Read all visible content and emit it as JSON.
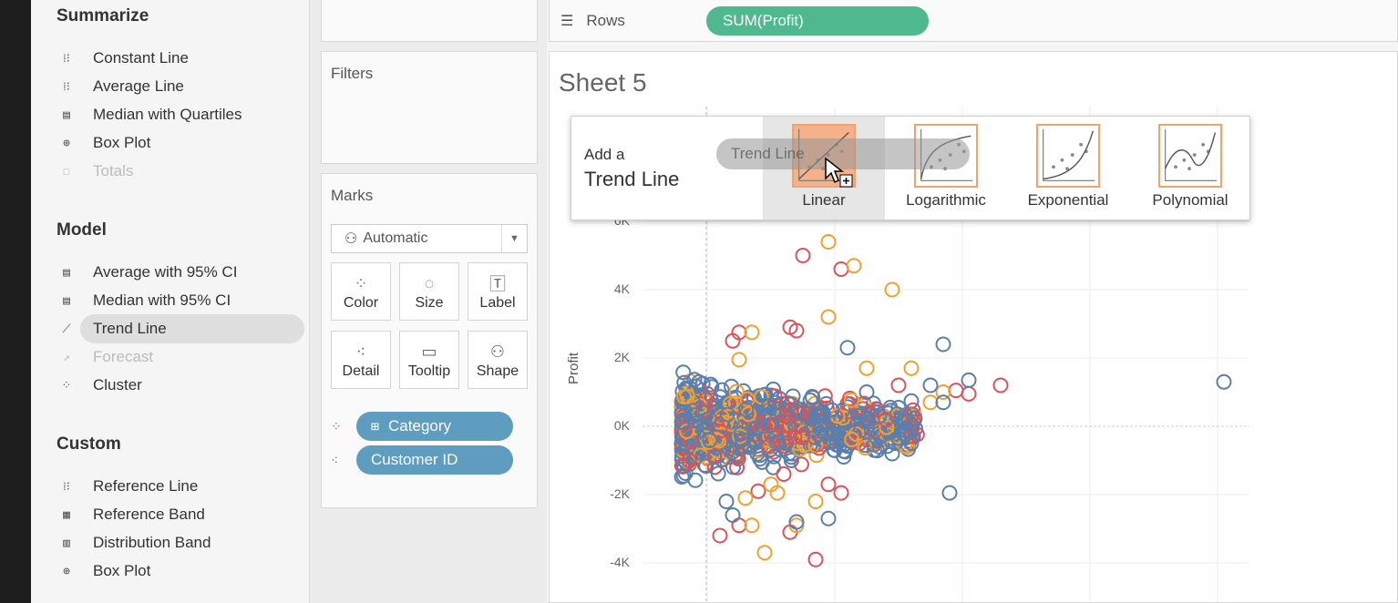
{
  "analytics": {
    "summarize": {
      "title": "Summarize",
      "items": [
        {
          "label": "Constant Line",
          "icon": "reference-line-icon",
          "glyph": "⁞⁝",
          "disabled": false
        },
        {
          "label": "Average Line",
          "icon": "reference-line-icon",
          "glyph": "⁞⁝",
          "disabled": false
        },
        {
          "label": "Median with Quartiles",
          "icon": "distribution-band-icon",
          "glyph": "▤",
          "disabled": false
        },
        {
          "label": "Box Plot",
          "icon": "box-plot-icon",
          "glyph": "⊕",
          "disabled": false
        },
        {
          "label": "Totals",
          "icon": "totals-icon",
          "glyph": "☐",
          "disabled": true
        }
      ]
    },
    "model": {
      "title": "Model",
      "items": [
        {
          "label": "Average with 95% CI",
          "icon": "confidence-band-icon",
          "glyph": "▤",
          "disabled": false
        },
        {
          "label": "Median with 95% CI",
          "icon": "confidence-band-icon",
          "glyph": "▤",
          "disabled": false
        },
        {
          "label": "Trend Line",
          "icon": "trend-line-icon",
          "glyph": "⟋",
          "disabled": false,
          "selected": true
        },
        {
          "label": "Forecast",
          "icon": "forecast-icon",
          "glyph": "↗",
          "disabled": true
        },
        {
          "label": "Cluster",
          "icon": "cluster-icon",
          "glyph": "⁘",
          "disabled": false
        }
      ]
    },
    "custom": {
      "title": "Custom",
      "items": [
        {
          "label": "Reference Line",
          "icon": "reference-line-icon",
          "glyph": "⁞⁝",
          "disabled": false
        },
        {
          "label": "Reference Band",
          "icon": "reference-band-icon",
          "glyph": "▦",
          "disabled": false
        },
        {
          "label": "Distribution Band",
          "icon": "distribution-band-icon",
          "glyph": "▥",
          "disabled": false
        },
        {
          "label": "Box Plot",
          "icon": "box-plot-icon",
          "glyph": "⊕",
          "disabled": false
        }
      ]
    }
  },
  "filters": {
    "title": "Filters"
  },
  "marks": {
    "title": "Marks",
    "mark_type": "Automatic",
    "mark_type_icon": "⚇",
    "buttons": [
      {
        "label": "Color",
        "icon": "color-icon",
        "glyph": "⁘"
      },
      {
        "label": "Size",
        "icon": "size-icon",
        "glyph": "◌"
      },
      {
        "label": "Label",
        "icon": "label-icon",
        "glyph": "🅃"
      },
      {
        "label": "Detail",
        "icon": "detail-icon",
        "glyph": "⁖"
      },
      {
        "label": "Tooltip",
        "icon": "tooltip-icon",
        "glyph": "▭"
      },
      {
        "label": "Shape",
        "icon": "shape-icon",
        "glyph": "⚇"
      }
    ],
    "fields": [
      {
        "label": "Category",
        "prefix": "⊞",
        "icon": "color-icon",
        "glyph": "⁘"
      },
      {
        "label": "Customer ID",
        "prefix": "",
        "icon": "detail-icon",
        "glyph": "⁖"
      }
    ]
  },
  "rows": {
    "label": "Rows",
    "pill": "SUM(Profit)"
  },
  "sheet": {
    "title": "Sheet 5"
  },
  "trend_popup": {
    "add_a": "Add a",
    "title": "Trend Line",
    "options": [
      {
        "label": "Linear",
        "icon": "linear-trend-icon",
        "hover": true
      },
      {
        "label": "Logarithmic",
        "icon": "logarithmic-trend-icon",
        "hover": false
      },
      {
        "label": "Exponential",
        "icon": "exponential-trend-icon",
        "hover": false
      },
      {
        "label": "Polynomial",
        "icon": "polynomial-trend-icon",
        "hover": false
      }
    ],
    "drag_label": "Trend Line"
  },
  "colors": {
    "series_blue": "#5b7fad",
    "series_orange": "#f0a030",
    "series_red": "#d9545a",
    "pill_blue": "#5e9dbf",
    "pill_green": "#4fb88f",
    "thumb_border": "#f0a36c"
  },
  "chart_data": {
    "type": "scatter",
    "ylabel": "Profit",
    "y_ticks": [
      "6K",
      "4K",
      "2K",
      "0K",
      "-2K",
      "-4K"
    ],
    "y_tick_values": [
      6000,
      4000,
      2000,
      0,
      -2000,
      -4000
    ],
    "grid": true,
    "series": [
      {
        "name": "",
        "color": "#d9545a",
        "points": [
          [
            1.0,
            5000
          ],
          [
            1.3,
            4600
          ],
          [
            0.45,
            2500
          ],
          [
            0.5,
            2750
          ],
          [
            0.9,
            2900
          ],
          [
            0.95,
            2800
          ],
          [
            1.75,
            1200
          ],
          [
            2.3,
            950
          ],
          [
            2.55,
            1200
          ],
          [
            1.65,
            200
          ],
          [
            0.85,
            -1400
          ],
          [
            0.65,
            -1900
          ],
          [
            0.5,
            -2900
          ],
          [
            0.35,
            -3200
          ],
          [
            1.1,
            -3900
          ],
          [
            1.2,
            -1700
          ],
          [
            1.3,
            -1950
          ],
          [
            0.9,
            -3100
          ],
          [
            2.2,
            1050
          ]
        ]
      },
      {
        "name": "",
        "color": "#f0a030",
        "points": [
          [
            1.2,
            5400
          ],
          [
            1.4,
            4700
          ],
          [
            1.7,
            4000
          ],
          [
            1.2,
            3200
          ],
          [
            1.85,
            1700
          ],
          [
            0.6,
            2750
          ],
          [
            0.5,
            1950
          ],
          [
            0.55,
            -2100
          ],
          [
            0.6,
            -2900
          ],
          [
            0.7,
            -3700
          ],
          [
            1.1,
            -2200
          ],
          [
            0.95,
            -2900
          ],
          [
            2.0,
            700
          ],
          [
            2.1,
            1000
          ],
          [
            1.5,
            1700
          ],
          [
            0.8,
            -1950
          ],
          [
            0.75,
            -1700
          ]
        ]
      },
      {
        "name": "",
        "color": "#5b7fad",
        "points": [
          [
            2.1,
            2400
          ],
          [
            4.3,
            1300
          ],
          [
            1.35,
            2300
          ],
          [
            1.5,
            1000
          ],
          [
            1.6,
            300
          ],
          [
            1.7,
            -800
          ],
          [
            1.8,
            -250
          ],
          [
            1.85,
            -500
          ],
          [
            1.6,
            -600
          ],
          [
            2.0,
            1200
          ],
          [
            2.1,
            700
          ],
          [
            2.3,
            1350
          ],
          [
            0.95,
            -2800
          ],
          [
            1.2,
            -2700
          ],
          [
            2.15,
            -1950
          ],
          [
            0.4,
            -2200
          ],
          [
            0.45,
            -2600
          ]
        ]
      }
    ],
    "dense_cluster": {
      "x_range": [
        0.05,
        1.9
      ],
      "y_range": [
        -1800,
        1800
      ],
      "color": "#5b7fad"
    }
  }
}
